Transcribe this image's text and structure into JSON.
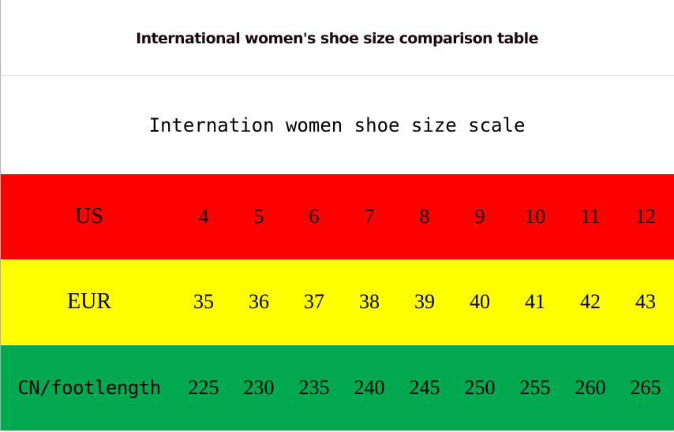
{
  "title": "International women's shoe size comparison table",
  "subtitle": "Internation women shoe size scale",
  "rows": [
    {
      "label": "US",
      "color": "#ff0000",
      "values": [
        "4",
        "5",
        "6",
        "7",
        "8",
        "9",
        "10",
        "11",
        "12"
      ]
    },
    {
      "label": "EUR",
      "color": "#ffff00",
      "values": [
        "35",
        "36",
        "37",
        "38",
        "39",
        "40",
        "41",
        "42",
        "43"
      ]
    },
    {
      "label": "CN/footlength",
      "color": "#00a94f",
      "values": [
        "225",
        "230",
        "235",
        "240",
        "245",
        "250",
        "255",
        "260",
        "265"
      ]
    }
  ]
}
